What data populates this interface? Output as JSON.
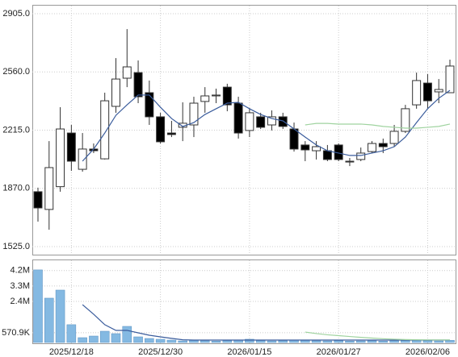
{
  "chart_data": [
    {
      "type": "candlestick",
      "open": [
        1850,
        1745,
        1880,
        2198,
        1983,
        2103,
        2045,
        2356,
        2523,
        2556,
        2437,
        2294,
        2198,
        2232,
        2246,
        2385,
        2418,
        2470,
        2375,
        2213,
        2294,
        2246,
        2294,
        2222,
        2127,
        2093,
        2093,
        2127,
        2031,
        2041,
        2088,
        2136,
        2136,
        2208,
        2365,
        2494,
        2442,
        2437
      ],
      "high": [
        1874,
        2150,
        2351,
        2246,
        2198,
        2136,
        2437,
        2642,
        2814,
        2628,
        2509,
        2318,
        2270,
        2380,
        2413,
        2470,
        2461,
        2490,
        2413,
        2346,
        2318,
        2332,
        2318,
        2260,
        2150,
        2150,
        2127,
        2136,
        2050,
        2112,
        2150,
        2165,
        2246,
        2365,
        2556,
        2547,
        2518,
        2633
      ],
      "low": [
        1673,
        1625,
        1850,
        1974,
        1969,
        2079,
        2041,
        2318,
        2470,
        2375,
        2246,
        2136,
        2174,
        2150,
        2174,
        2318,
        2375,
        2327,
        2165,
        2174,
        2222,
        2213,
        2222,
        2088,
        2031,
        2041,
        2031,
        2031,
        2002,
        2031,
        2079,
        2079,
        2117,
        2198,
        2342,
        2342,
        2375,
        2437
      ],
      "close": [
        1754,
        1993,
        2222,
        2031,
        2103,
        2093,
        2389,
        2518,
        2590,
        2413,
        2294,
        2146,
        2189,
        2256,
        2375,
        2418,
        2423,
        2365,
        2198,
        2318,
        2232,
        2294,
        2237,
        2103,
        2098,
        2117,
        2041,
        2041,
        2026,
        2079,
        2136,
        2117,
        2208,
        2342,
        2509,
        2389,
        2456,
        2595
      ],
      "up_color": "#ffffff",
      "down_color": "#000000",
      "edge_color": "#333333",
      "lines": [
        {
          "color": "#3a5c9c",
          "values": [
            null,
            null,
            null,
            null,
            2031,
            2103,
            2198,
            2303,
            2365,
            2423,
            2423,
            2351,
            2284,
            2237,
            2260,
            2308,
            2342,
            2375,
            2380,
            2342,
            2308,
            2284,
            2270,
            2222,
            2174,
            2127,
            2093,
            2079,
            2065,
            2065,
            2079,
            2093,
            2117,
            2174,
            2260,
            2342,
            2404,
            2451
          ]
        },
        {
          "color": "#9fd39f",
          "values": [
            null,
            null,
            null,
            null,
            null,
            null,
            null,
            null,
            null,
            null,
            null,
            null,
            null,
            null,
            null,
            null,
            null,
            null,
            null,
            null,
            null,
            null,
            null,
            null,
            2246,
            2255,
            2255,
            2251,
            2251,
            2251,
            2246,
            2237,
            2232,
            2227,
            2227,
            2232,
            2237,
            2251
          ]
        }
      ],
      "ylim": [
        1477,
        2953
      ],
      "yticks": [
        {
          "value": 1525,
          "label": "1525.0"
        },
        {
          "value": 1870,
          "label": "1870.0"
        },
        {
          "value": 2215,
          "label": "2215.0"
        },
        {
          "value": 2560,
          "label": "2560.0"
        },
        {
          "value": 2905,
          "label": "2905.0"
        }
      ],
      "grid": true
    },
    {
      "type": "bar",
      "categories": [
        null,
        null,
        null,
        "2025/12/18",
        null,
        null,
        null,
        null,
        null,
        null,
        null,
        "2025/12/30",
        null,
        null,
        null,
        null,
        null,
        null,
        null,
        "2026/01/15",
        null,
        null,
        null,
        null,
        null,
        null,
        null,
        "2026/01/27",
        null,
        null,
        null,
        null,
        null,
        null,
        null,
        "2026/02/06",
        null,
        null
      ],
      "values": [
        4240000,
        2590000,
        3060000,
        1040000,
        283000,
        377000,
        659000,
        518000,
        942000,
        330000,
        235000,
        188000,
        141000,
        94000,
        120000,
        100000,
        80000,
        110000,
        130000,
        190000,
        110000,
        90000,
        100000,
        140000,
        120000,
        100000,
        90000,
        110000,
        80000,
        90000,
        100000,
        80000,
        100000,
        110000,
        140000,
        110000,
        90000,
        130000
      ],
      "color": "#84b9e2",
      "edge_color": "#5a90c0",
      "lines": [
        {
          "color": "#3a5c9c",
          "values": [
            null,
            null,
            null,
            null,
            2210000,
            1650000,
            1040000,
            707000,
            707000,
            565000,
            424000,
            330000,
            240000,
            160000,
            141000,
            141000,
            141000,
            141000,
            141000,
            141000,
            141000,
            141000,
            141000,
            141000,
            141000,
            141000,
            141000,
            141000,
            141000,
            141000,
            141000,
            141000,
            141000,
            141000,
            141000,
            141000,
            141000,
            141000
          ]
        },
        {
          "color": "#9fd39f",
          "values": [
            null,
            null,
            null,
            null,
            null,
            null,
            null,
            null,
            null,
            null,
            null,
            null,
            null,
            null,
            null,
            null,
            null,
            null,
            null,
            null,
            null,
            null,
            null,
            null,
            610000,
            520000,
            450000,
            400000,
            350000,
            300000,
            260000,
            220000,
            190000,
            170000,
            160000,
            150000,
            150000,
            150000
          ]
        }
      ],
      "ylim": [
        0,
        4800000
      ],
      "yticks": [
        {
          "value": 570900,
          "label": "570.9K"
        },
        {
          "value": 2400000,
          "label": "2.4M"
        },
        {
          "value": 3300000,
          "label": "3.3M"
        },
        {
          "value": 4200000,
          "label": "4.2M"
        }
      ],
      "grid": true
    }
  ]
}
